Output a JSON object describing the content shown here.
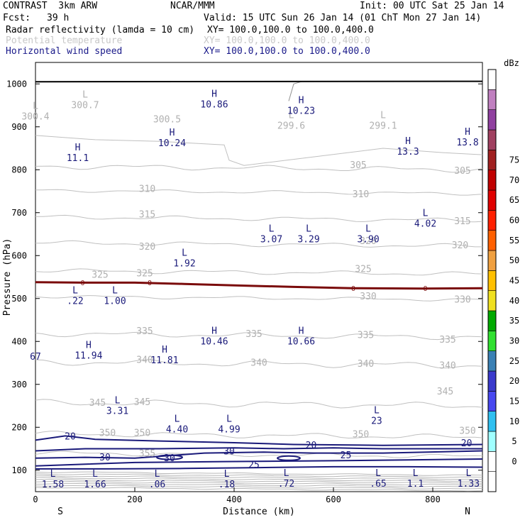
{
  "header": {
    "model": "CONTRAST  3km ARW",
    "org": "NCAR/MMM",
    "init": "Init: 00 UTC Sat 25 Jan 14",
    "fcst_label": "Fcst:",
    "fcst_value": "39 h",
    "valid": "Valid: 15 UTC Sun 26 Jan 14 (01 ChT Mon 27 Jan 14)",
    "fields": [
      {
        "name": "Radar reflectivity (lamda = 10 cm)",
        "xy": "XY= 100.0,100.0 to 100.0,400.0",
        "color": "#000000"
      },
      {
        "name": "Potential temperature",
        "xy": "XY= 100.0,100.0 to 100.0,400.0",
        "color": "#c8c8c8"
      },
      {
        "name": "Horizontal wind speed",
        "xy": "XY= 100.0,100.0 to 100.0,400.0",
        "color": "#1a1a8a"
      }
    ]
  },
  "chart_data": {
    "type": "cross-section",
    "xlabel": "Distance (km)",
    "ylabel": "Pressure (hPa)",
    "xlim": [
      0,
      900
    ],
    "ylim": [
      1050,
      50
    ],
    "x_ticks": [
      "0",
      "200",
      "400",
      "600",
      "800"
    ],
    "x_tick_values": [
      0,
      200,
      400,
      600,
      800
    ],
    "y_ticks": [
      "100",
      "200",
      "300",
      "400",
      "500",
      "600",
      "700",
      "800",
      "900",
      "1000"
    ],
    "y_tick_values": [
      100,
      200,
      300,
      400,
      500,
      600,
      700,
      800,
      900,
      1000
    ],
    "end_labels": {
      "left": "S",
      "right": "N"
    },
    "theta_labels": [
      {
        "text": "355",
        "x": 225,
        "p": 140
      },
      {
        "text": "350",
        "x": 145,
        "p": 188
      },
      {
        "text": "350",
        "x": 215,
        "p": 188
      },
      {
        "text": "350",
        "x": 655,
        "p": 185
      },
      {
        "text": "350",
        "x": 870,
        "p": 193
      },
      {
        "text": "345",
        "x": 125,
        "p": 258
      },
      {
        "text": "345",
        "x": 215,
        "p": 260
      },
      {
        "text": "345",
        "x": 825,
        "p": 285
      },
      {
        "text": "340",
        "x": 220,
        "p": 358
      },
      {
        "text": "340",
        "x": 450,
        "p": 352
      },
      {
        "text": "340",
        "x": 665,
        "p": 349
      },
      {
        "text": "340",
        "x": 830,
        "p": 345
      },
      {
        "text": "335",
        "x": 220,
        "p": 425
      },
      {
        "text": "335",
        "x": 440,
        "p": 419
      },
      {
        "text": "335",
        "x": 665,
        "p": 416
      },
      {
        "text": "335",
        "x": 830,
        "p": 405
      },
      {
        "text": "330",
        "x": 670,
        "p": 506
      },
      {
        "text": "330",
        "x": 860,
        "p": 499
      },
      {
        "text": "325",
        "x": 130,
        "p": 557
      },
      {
        "text": "325",
        "x": 220,
        "p": 560
      },
      {
        "text": "325",
        "x": 660,
        "p": 570
      },
      {
        "text": "320",
        "x": 225,
        "p": 622
      },
      {
        "text": "320",
        "x": 670,
        "p": 635
      },
      {
        "text": "320",
        "x": 855,
        "p": 625
      },
      {
        "text": "315",
        "x": 225,
        "p": 697
      },
      {
        "text": "315",
        "x": 860,
        "p": 681
      },
      {
        "text": "310",
        "x": 225,
        "p": 757
      },
      {
        "text": "310",
        "x": 655,
        "p": 744
      },
      {
        "text": "305",
        "x": 650,
        "p": 812
      },
      {
        "text": "305",
        "x": 860,
        "p": 799
      }
    ],
    "wind_labels": [
      {
        "text": "25",
        "x": 440,
        "p": 114
      },
      {
        "text": "25",
        "x": 625,
        "p": 136
      },
      {
        "text": "30",
        "x": 140,
        "p": 131
      },
      {
        "text": "30",
        "x": 270,
        "p": 129
      },
      {
        "text": "30",
        "x": 390,
        "p": 145
      },
      {
        "text": "20",
        "x": 70,
        "p": 180
      },
      {
        "text": "20",
        "x": 555,
        "p": 159
      },
      {
        "text": "20",
        "x": 868,
        "p": 164
      }
    ],
    "extrema": [
      {
        "type": "L",
        "value": "1.58",
        "x": 35,
        "p": 85
      },
      {
        "type": "L",
        "value": "1.66",
        "x": 120,
        "p": 85
      },
      {
        "type": "L",
        "value": ".06",
        "x": 245,
        "p": 85
      },
      {
        "type": "L",
        "value": ".18",
        "x": 385,
        "p": 85
      },
      {
        "type": "L",
        "value": ".72",
        "x": 505,
        "p": 86
      },
      {
        "type": "L",
        "value": ".65",
        "x": 690,
        "p": 86
      },
      {
        "type": "L",
        "value": "1.1",
        "x": 765,
        "p": 86
      },
      {
        "type": "L",
        "value": "1.33",
        "x": 872,
        "p": 86
      },
      {
        "type": "L",
        "value": "4.40",
        "x": 285,
        "p": 213
      },
      {
        "type": "L",
        "value": "4.99",
        "x": 390,
        "p": 213
      },
      {
        "type": "L",
        "value": "23",
        "x": 687,
        "p": 233
      },
      {
        "type": "L",
        "value": "3.31",
        "x": 165,
        "p": 256
      },
      {
        "type": "H",
        "value": "11.81",
        "x": 260,
        "p": 374
      },
      {
        "type": "",
        "value": "67",
        "x": 0,
        "p": 382
      },
      {
        "type": "H",
        "value": "11.94",
        "x": 107,
        "p": 385
      },
      {
        "type": "H",
        "value": "10.46",
        "x": 360,
        "p": 418
      },
      {
        "type": "H",
        "value": "10.66",
        "x": 535,
        "p": 418
      },
      {
        "type": "L",
        "value": ".22",
        "x": 80,
        "p": 512
      },
      {
        "type": "L",
        "value": "1.00",
        "x": 160,
        "p": 512
      },
      {
        "type": "L",
        "value": "1.92",
        "x": 300,
        "p": 600
      },
      {
        "type": "L",
        "value": "3.07",
        "x": 475,
        "p": 656
      },
      {
        "type": "L",
        "value": "3.29",
        "x": 550,
        "p": 656
      },
      {
        "type": "L",
        "value": "3.90",
        "x": 670,
        "p": 656
      },
      {
        "type": "L",
        "value": "4.02",
        "x": 785,
        "p": 692
      },
      {
        "type": "H",
        "value": "11.1",
        "x": 85,
        "p": 845
      },
      {
        "type": "H",
        "value": "13.3",
        "x": 750,
        "p": 860
      },
      {
        "type": "H",
        "value": "10.24",
        "x": 275,
        "p": 880
      },
      {
        "type": "H",
        "value": "13.8",
        "x": 870,
        "p": 881
      }
    ],
    "theta_extrema": [
      {
        "type": "L",
        "value": "300.4",
        "x": 0,
        "p": 942
      },
      {
        "type": "L",
        "value": "300.7",
        "x": 100,
        "p": 968
      },
      {
        "type": "",
        "value": "300.5",
        "x": 265,
        "p": 935
      },
      {
        "type": "L",
        "value": "299.6",
        "x": 515,
        "p": 920
      },
      {
        "type": "L",
        "value": "299.1",
        "x": 700,
        "p": 920
      }
    ],
    "surface_extrema": [
      {
        "type": "H",
        "value": "10.86",
        "x": 360,
        "p": 970
      },
      {
        "type": "H",
        "value": "10.23",
        "x": 535,
        "p": 955
      }
    ],
    "zero_line_labels": [
      {
        "text": "0",
        "x": 95,
        "p": 538
      },
      {
        "text": "0",
        "x": 230,
        "p": 538
      },
      {
        "text": "0",
        "x": 640,
        "p": 524
      },
      {
        "text": "0",
        "x": 785,
        "p": 524
      }
    ],
    "colorbar": {
      "unit": "dBz",
      "levels": [
        "0",
        "5",
        "10",
        "15",
        "20",
        "25",
        "30",
        "35",
        "40",
        "45",
        "50",
        "55",
        "60",
        "65",
        "70",
        "75"
      ],
      "colors": [
        "#ffffff",
        "#ffffff",
        "#a0ffff",
        "#30c0f0",
        "#4848f0",
        "#3a3acc",
        "#3a80b4",
        "#30e030",
        "#00aa00",
        "#f0e020",
        "#ffc000",
        "#f0a040",
        "#ff6000",
        "#ff2000",
        "#e00000",
        "#c00000",
        "#a02020",
        "#a04060",
        "#9040a0",
        "#c080c0",
        "#ffffff"
      ]
    }
  }
}
